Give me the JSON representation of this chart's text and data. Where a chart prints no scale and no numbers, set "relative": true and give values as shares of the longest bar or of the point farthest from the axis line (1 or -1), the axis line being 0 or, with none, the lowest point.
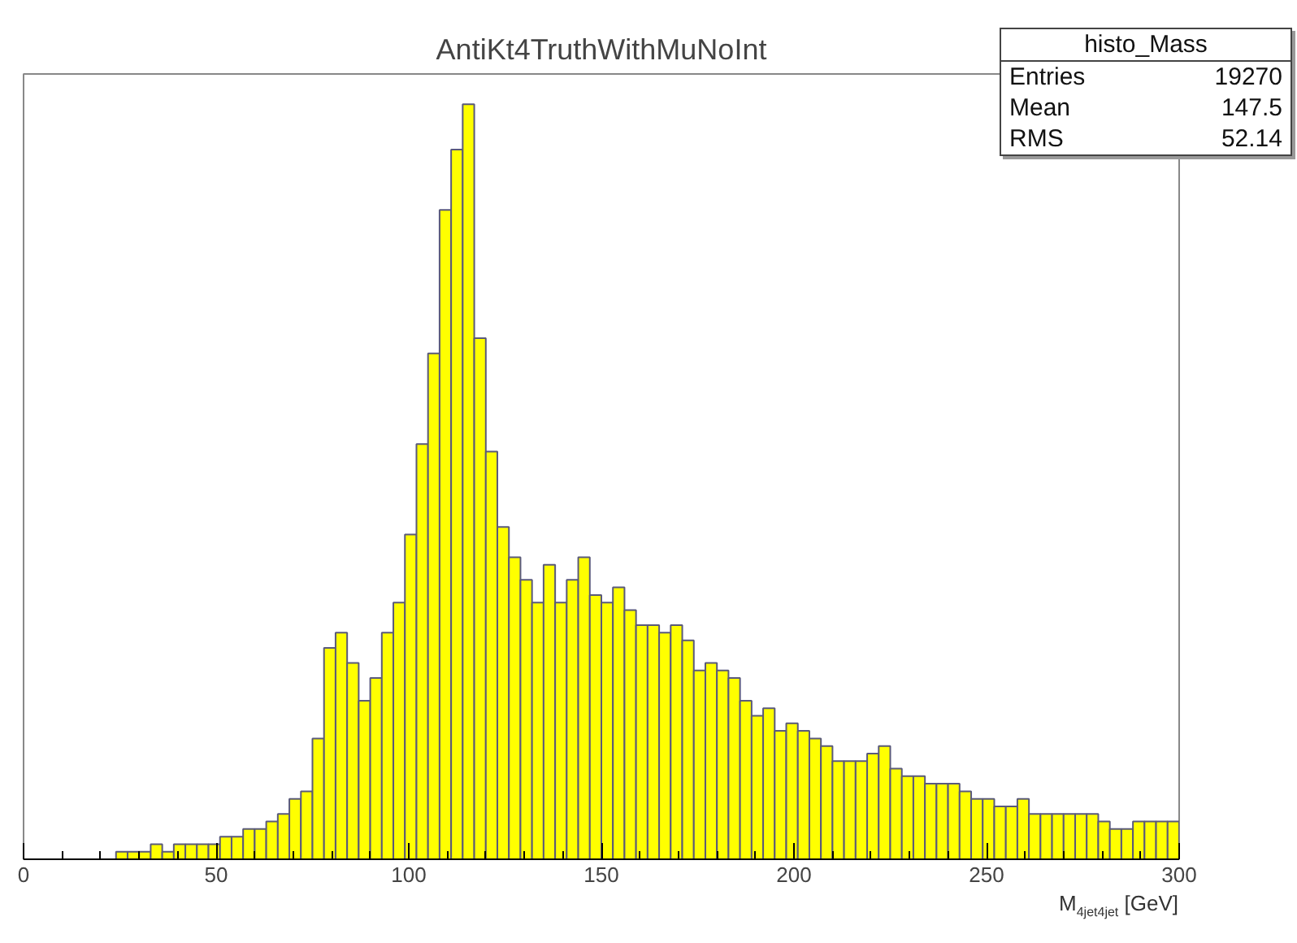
{
  "chart_data": {
    "type": "bar",
    "title": "AntiKt4TruthWithMuNoInt",
    "xlabel": "M$_{4jet4jet}$ [GeV]",
    "relative": true,
    "color": "#ffff00",
    "x": [
      1.5,
      4.5,
      7.5,
      10.5,
      13.5,
      16.5,
      19.5,
      22.5,
      25.5,
      28.5,
      31.5,
      34.5,
      37.5,
      40.5,
      43.5,
      46.5,
      49.5,
      52.5,
      55.5,
      58.5,
      61.5,
      64.5,
      67.5,
      70.5,
      73.5,
      76.5,
      79.5,
      82.5,
      85.5,
      88.5,
      91.5,
      94.5,
      97.5,
      100.5,
      103.5,
      106.5,
      109.5,
      112.5,
      115.5,
      118.5,
      121.5,
      124.5,
      127.5,
      130.5,
      133.5,
      136.5,
      139.5,
      142.5,
      145.5,
      148.5,
      151.5,
      154.5,
      157.5,
      160.5,
      163.5,
      166.5,
      169.5,
      172.5,
      175.5,
      178.5,
      181.5,
      184.5,
      187.5,
      190.5,
      193.5,
      196.5,
      199.5,
      202.5,
      205.5,
      208.5,
      211.5,
      214.5,
      217.5,
      220.5,
      223.5,
      226.5,
      229.5,
      232.5,
      235.5,
      238.5,
      241.5,
      244.5,
      247.5,
      250.5,
      253.5,
      256.5,
      259.5,
      262.5,
      265.5,
      268.5,
      271.5,
      274.5,
      277.5,
      280.5,
      283.5,
      286.5,
      289.5,
      292.5,
      295.5,
      298.5
    ],
    "values": [
      0,
      0,
      0,
      0,
      0,
      0,
      0,
      0,
      0.01,
      0.01,
      0.01,
      0.02,
      0.01,
      0.02,
      0.02,
      0.02,
      0.02,
      0.03,
      0.03,
      0.04,
      0.04,
      0.05,
      0.06,
      0.08,
      0.09,
      0.16,
      0.28,
      0.3,
      0.26,
      0.21,
      0.24,
      0.3,
      0.34,
      0.43,
      0.55,
      0.67,
      0.86,
      0.94,
      1.0,
      0.69,
      0.54,
      0.44,
      0.4,
      0.37,
      0.34,
      0.39,
      0.34,
      0.37,
      0.4,
      0.35,
      0.34,
      0.36,
      0.33,
      0.31,
      0.31,
      0.3,
      0.31,
      0.29,
      0.25,
      0.26,
      0.25,
      0.24,
      0.21,
      0.19,
      0.2,
      0.17,
      0.18,
      0.17,
      0.16,
      0.15,
      0.13,
      0.13,
      0.13,
      0.14,
      0.15,
      0.12,
      0.11,
      0.11,
      0.1,
      0.1,
      0.1,
      0.09,
      0.08,
      0.08,
      0.07,
      0.07,
      0.08,
      0.06,
      0.06,
      0.06,
      0.06,
      0.06,
      0.06,
      0.05,
      0.04,
      0.04,
      0.05,
      0.05,
      0.05,
      0.05
    ],
    "xlim": [
      0,
      300
    ],
    "xticks": [
      0,
      50,
      100,
      150,
      200,
      250,
      300
    ],
    "grid": false,
    "annotations": [
      "histo_Mass",
      "Entries 19270",
      "Mean 147.5",
      "RMS 52.14"
    ]
  }
}
